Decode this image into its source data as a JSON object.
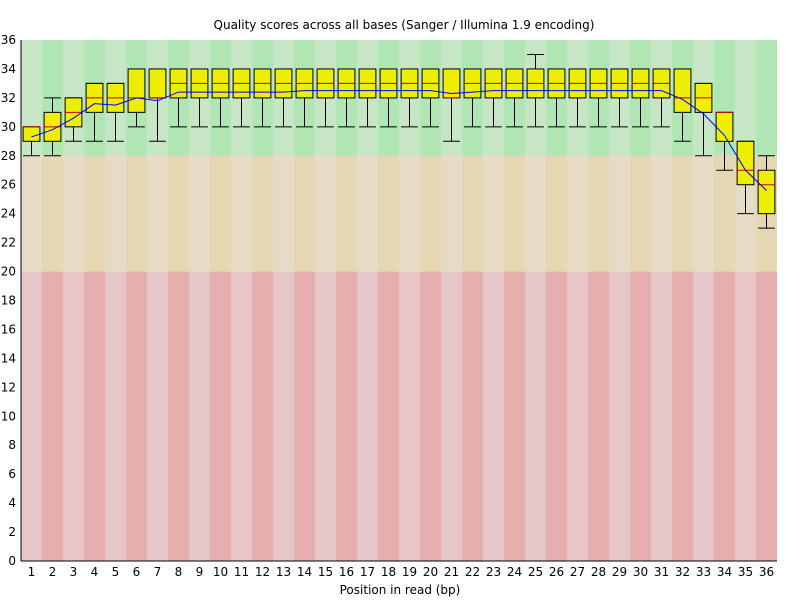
{
  "chart_data": {
    "type": "box",
    "title": "Quality scores across all bases (Sanger / Illumina 1.9 encoding)",
    "xlabel": "Position in read (bp)",
    "ylabel": "",
    "ylim": [
      0,
      36
    ],
    "y_ticks": [
      "0",
      "2",
      "4",
      "6",
      "8",
      "10",
      "12",
      "14",
      "16",
      "18",
      "20",
      "22",
      "24",
      "26",
      "28",
      "30",
      "32",
      "34",
      "36"
    ],
    "categories": [
      "1",
      "2",
      "3",
      "4",
      "5",
      "6",
      "7",
      "8",
      "9",
      "10",
      "11",
      "12",
      "13",
      "14",
      "15",
      "16",
      "17",
      "18",
      "19",
      "20",
      "21",
      "22",
      "23",
      "24",
      "25",
      "26",
      "27",
      "28",
      "29",
      "30",
      "31",
      "32",
      "33",
      "34",
      "35",
      "36"
    ],
    "quality_zones": [
      {
        "name": "good",
        "from": 28,
        "to": 36,
        "color_light": "#c6e6c6",
        "color_dark": "#afe6b3"
      },
      {
        "name": "reasonable",
        "from": 20,
        "to": 28,
        "color_light": "#e6dcc6",
        "color_dark": "#e6d7b3"
      },
      {
        "name": "poor",
        "from": 0,
        "to": 20,
        "color_light": "#e6c6c6",
        "color_dark": "#e6afaf"
      }
    ],
    "series": [
      {
        "stat": "box",
        "color": "#eeee00",
        "q1": [
          29,
          29,
          30,
          31,
          31,
          31,
          32,
          32,
          32,
          32,
          32,
          32,
          32,
          32,
          32,
          32,
          32,
          32,
          32,
          32,
          32,
          32,
          32,
          32,
          32,
          32,
          32,
          32,
          32,
          32,
          32,
          31,
          31,
          29,
          26,
          24
        ],
        "median": [
          30,
          30,
          31,
          32,
          32,
          32,
          32,
          33,
          33,
          33,
          33,
          33,
          33,
          33,
          33,
          33,
          33,
          33,
          33,
          33,
          32,
          33,
          33,
          33,
          33,
          33,
          33,
          33,
          33,
          33,
          33,
          32,
          32,
          31,
          27,
          26
        ],
        "q3": [
          30,
          31,
          32,
          33,
          33,
          34,
          34,
          34,
          34,
          34,
          34,
          34,
          34,
          34,
          34,
          34,
          34,
          34,
          34,
          34,
          34,
          34,
          34,
          34,
          34,
          34,
          34,
          34,
          34,
          34,
          34,
          34,
          33,
          31,
          29,
          27
        ],
        "low": [
          28,
          28,
          29,
          29,
          29,
          30,
          29,
          30,
          30,
          30,
          30,
          30,
          30,
          30,
          30,
          30,
          30,
          30,
          30,
          30,
          29,
          30,
          30,
          30,
          30,
          30,
          30,
          30,
          30,
          30,
          30,
          29,
          28,
          27,
          24,
          23
        ],
        "high": [
          30,
          32,
          32,
          33,
          33,
          34,
          34,
          34,
          34,
          34,
          34,
          34,
          34,
          34,
          34,
          34,
          34,
          34,
          34,
          34,
          34,
          34,
          34,
          34,
          35,
          34,
          34,
          34,
          34,
          34,
          34,
          34,
          33,
          31,
          29,
          28
        ]
      },
      {
        "stat": "mean",
        "color": "#0000ff",
        "values": [
          29.3,
          29.8,
          30.6,
          31.6,
          31.5,
          32.0,
          31.8,
          32.4,
          32.4,
          32.4,
          32.4,
          32.4,
          32.4,
          32.5,
          32.5,
          32.5,
          32.5,
          32.5,
          32.5,
          32.5,
          32.3,
          32.4,
          32.5,
          32.5,
          32.5,
          32.5,
          32.5,
          32.5,
          32.5,
          32.5,
          32.5,
          31.9,
          30.9,
          29.4,
          27.0,
          25.6
        ]
      }
    ],
    "grid": false,
    "legend": "none"
  }
}
